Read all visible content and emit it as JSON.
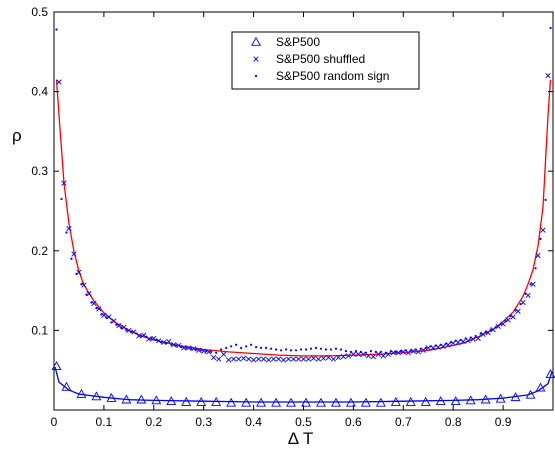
{
  "chart_data": {
    "type": "scatter",
    "title": "",
    "xlabel": "Δ T",
    "ylabel": "ρ",
    "xlim": [
      0,
      1
    ],
    "ylim": [
      0,
      0.5
    ],
    "xticks": [
      "0",
      "0.1",
      "0.2",
      "0.3",
      "0.4",
      "0.5",
      "0.6",
      "0.7",
      "0.8",
      "0.9"
    ],
    "yticks": [
      "0.1",
      "0.2",
      "0.3",
      "0.4",
      "0.5"
    ],
    "grid": false,
    "legend_position": "top-center",
    "series": [
      {
        "name": "S&P500",
        "marker": "triangle",
        "color": "#0000ff",
        "x": [
          0.005,
          0.025,
          0.055,
          0.085,
          0.115,
          0.145,
          0.175,
          0.205,
          0.235,
          0.265,
          0.295,
          0.325,
          0.355,
          0.385,
          0.415,
          0.445,
          0.475,
          0.505,
          0.535,
          0.565,
          0.595,
          0.625,
          0.655,
          0.685,
          0.715,
          0.745,
          0.775,
          0.805,
          0.835,
          0.865,
          0.895,
          0.925,
          0.955,
          0.975,
          0.995
        ],
        "y": [
          0.055,
          0.029,
          0.02,
          0.017,
          0.015,
          0.013,
          0.013,
          0.012,
          0.011,
          0.01,
          0.01,
          0.01,
          0.009,
          0.009,
          0.009,
          0.009,
          0.009,
          0.009,
          0.009,
          0.009,
          0.009,
          0.009,
          0.009,
          0.01,
          0.01,
          0.01,
          0.011,
          0.011,
          0.012,
          0.013,
          0.014,
          0.016,
          0.019,
          0.028,
          0.045
        ]
      },
      {
        "name": "S&P500 shuffled",
        "marker": "x",
        "color": "#0000ff",
        "x": [
          0.01,
          0.02,
          0.03,
          0.04,
          0.05,
          0.06,
          0.07,
          0.08,
          0.09,
          0.1,
          0.11,
          0.12,
          0.13,
          0.14,
          0.15,
          0.16,
          0.17,
          0.18,
          0.19,
          0.2,
          0.21,
          0.22,
          0.23,
          0.24,
          0.25,
          0.26,
          0.27,
          0.28,
          0.29,
          0.3,
          0.31,
          0.32,
          0.33,
          0.34,
          0.35,
          0.36,
          0.37,
          0.38,
          0.39,
          0.4,
          0.41,
          0.42,
          0.43,
          0.44,
          0.45,
          0.46,
          0.47,
          0.48,
          0.49,
          0.5,
          0.51,
          0.52,
          0.53,
          0.54,
          0.55,
          0.56,
          0.57,
          0.58,
          0.59,
          0.6,
          0.61,
          0.62,
          0.63,
          0.64,
          0.65,
          0.66,
          0.67,
          0.68,
          0.69,
          0.7,
          0.71,
          0.72,
          0.73,
          0.74,
          0.75,
          0.76,
          0.77,
          0.78,
          0.79,
          0.8,
          0.81,
          0.82,
          0.83,
          0.84,
          0.85,
          0.86,
          0.87,
          0.88,
          0.89,
          0.9,
          0.91,
          0.92,
          0.93,
          0.94,
          0.95,
          0.96,
          0.97,
          0.98,
          0.99
        ],
        "y": [
          0.412,
          0.285,
          0.228,
          0.196,
          0.173,
          0.157,
          0.146,
          0.134,
          0.127,
          0.119,
          0.117,
          0.112,
          0.106,
          0.104,
          0.1,
          0.098,
          0.093,
          0.094,
          0.089,
          0.09,
          0.087,
          0.085,
          0.086,
          0.082,
          0.081,
          0.078,
          0.078,
          0.077,
          0.075,
          0.074,
          0.073,
          0.066,
          0.064,
          0.07,
          0.063,
          0.064,
          0.064,
          0.065,
          0.064,
          0.063,
          0.064,
          0.064,
          0.063,
          0.064,
          0.064,
          0.063,
          0.064,
          0.064,
          0.064,
          0.064,
          0.064,
          0.065,
          0.064,
          0.065,
          0.066,
          0.064,
          0.066,
          0.067,
          0.068,
          0.07,
          0.07,
          0.07,
          0.068,
          0.067,
          0.07,
          0.068,
          0.07,
          0.072,
          0.072,
          0.073,
          0.072,
          0.074,
          0.073,
          0.075,
          0.078,
          0.078,
          0.079,
          0.08,
          0.082,
          0.084,
          0.085,
          0.086,
          0.087,
          0.089,
          0.09,
          0.095,
          0.097,
          0.101,
          0.105,
          0.108,
          0.113,
          0.117,
          0.124,
          0.135,
          0.144,
          0.158,
          0.194,
          0.226,
          0.42
        ]
      },
      {
        "name": "S&P500 random sign",
        "marker": "dot",
        "color": "#0000ff",
        "x": [
          0.005,
          0.015,
          0.025,
          0.035,
          0.045,
          0.055,
          0.065,
          0.075,
          0.085,
          0.095,
          0.105,
          0.115,
          0.125,
          0.135,
          0.145,
          0.155,
          0.165,
          0.175,
          0.185,
          0.195,
          0.205,
          0.215,
          0.225,
          0.235,
          0.245,
          0.255,
          0.265,
          0.275,
          0.285,
          0.295,
          0.305,
          0.315,
          0.325,
          0.335,
          0.345,
          0.355,
          0.365,
          0.375,
          0.385,
          0.395,
          0.405,
          0.415,
          0.425,
          0.435,
          0.445,
          0.455,
          0.465,
          0.475,
          0.485,
          0.495,
          0.505,
          0.515,
          0.525,
          0.535,
          0.545,
          0.555,
          0.565,
          0.575,
          0.585,
          0.595,
          0.605,
          0.615,
          0.625,
          0.635,
          0.645,
          0.655,
          0.665,
          0.675,
          0.685,
          0.695,
          0.705,
          0.715,
          0.725,
          0.735,
          0.745,
          0.755,
          0.765,
          0.775,
          0.785,
          0.795,
          0.805,
          0.815,
          0.825,
          0.835,
          0.845,
          0.855,
          0.865,
          0.875,
          0.885,
          0.895,
          0.905,
          0.915,
          0.925,
          0.935,
          0.945,
          0.955,
          0.965,
          0.975,
          0.985,
          0.995
        ],
        "y": [
          0.478,
          0.265,
          0.223,
          0.19,
          0.171,
          0.158,
          0.145,
          0.135,
          0.128,
          0.12,
          0.116,
          0.11,
          0.107,
          0.103,
          0.1,
          0.098,
          0.096,
          0.093,
          0.092,
          0.09,
          0.088,
          0.085,
          0.084,
          0.082,
          0.081,
          0.079,
          0.078,
          0.077,
          0.076,
          0.075,
          0.074,
          0.073,
          0.072,
          0.076,
          0.078,
          0.08,
          0.082,
          0.078,
          0.08,
          0.082,
          0.079,
          0.078,
          0.078,
          0.077,
          0.076,
          0.075,
          0.076,
          0.075,
          0.075,
          0.076,
          0.076,
          0.077,
          0.078,
          0.077,
          0.076,
          0.076,
          0.077,
          0.076,
          0.074,
          0.073,
          0.074,
          0.073,
          0.072,
          0.074,
          0.073,
          0.073,
          0.072,
          0.074,
          0.073,
          0.074,
          0.075,
          0.075,
          0.076,
          0.077,
          0.078,
          0.08,
          0.081,
          0.082,
          0.083,
          0.085,
          0.087,
          0.088,
          0.09,
          0.091,
          0.093,
          0.096,
          0.098,
          0.101,
          0.104,
          0.108,
          0.112,
          0.118,
          0.125,
          0.133,
          0.146,
          0.158,
          0.178,
          0.215,
          0.264,
          0.48
        ]
      }
    ],
    "fit_lines": [
      {
        "color": "#ff0000",
        "x": [
          0.005,
          0.01,
          0.02,
          0.03,
          0.04,
          0.05,
          0.06,
          0.08,
          0.1,
          0.12,
          0.15,
          0.18,
          0.2,
          0.25,
          0.3,
          0.35,
          0.4,
          0.45,
          0.5,
          0.55,
          0.6,
          0.65,
          0.7,
          0.75,
          0.8,
          0.82,
          0.85,
          0.88,
          0.9,
          0.92,
          0.94,
          0.95,
          0.96,
          0.97,
          0.98,
          0.99,
          0.995
        ],
        "y": [
          0.415,
          0.37,
          0.285,
          0.234,
          0.199,
          0.174,
          0.157,
          0.137,
          0.122,
          0.111,
          0.1,
          0.092,
          0.088,
          0.081,
          0.076,
          0.073,
          0.071,
          0.069,
          0.068,
          0.068,
          0.069,
          0.07,
          0.072,
          0.075,
          0.081,
          0.084,
          0.092,
          0.101,
          0.111,
          0.123,
          0.143,
          0.158,
          0.176,
          0.206,
          0.255,
          0.37,
          0.415
        ]
      },
      {
        "color": "#0000ff",
        "x": [
          0.002,
          0.01,
          0.03,
          0.05,
          0.1,
          0.15,
          0.2,
          0.3,
          0.4,
          0.5,
          0.6,
          0.7,
          0.8,
          0.85,
          0.9,
          0.95,
          0.97,
          0.99,
          0.998
        ],
        "y": [
          0.054,
          0.035,
          0.025,
          0.02,
          0.016,
          0.013,
          0.012,
          0.011,
          0.01,
          0.01,
          0.01,
          0.011,
          0.012,
          0.013,
          0.015,
          0.019,
          0.024,
          0.033,
          0.048
        ]
      }
    ]
  }
}
